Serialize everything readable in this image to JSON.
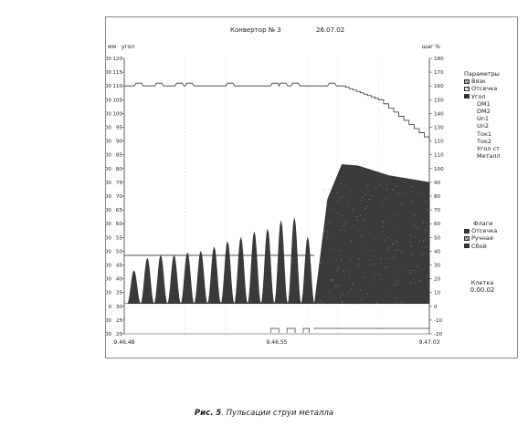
{
  "window": {
    "title": "Конвертор № 3",
    "date": "26.07.02"
  },
  "axes": {
    "left_unit_1": "мм",
    "left_unit_2": "угол",
    "right_unit": "шаг %"
  },
  "parameters": {
    "heading": "Параметры",
    "items": [
      {
        "label": "Вязк",
        "swatch": "hatch"
      },
      {
        "label": "Отсечка",
        "swatch": "light"
      },
      {
        "label": "Угол",
        "swatch": "solid"
      },
      {
        "label": "DM1",
        "swatch": ""
      },
      {
        "label": "DM2",
        "swatch": ""
      },
      {
        "label": "Un1",
        "swatch": ""
      },
      {
        "label": "Un2",
        "swatch": ""
      },
      {
        "label": "Ток1",
        "swatch": ""
      },
      {
        "label": "Ток2",
        "swatch": ""
      },
      {
        "label": "Угол ст",
        "swatch": ""
      },
      {
        "label": "Металл",
        "swatch": ""
      }
    ]
  },
  "flags": {
    "heading": "Флаги",
    "items": [
      {
        "label": "Отсечка",
        "swatch": "solid"
      },
      {
        "label": "Ручная",
        "swatch": "hatch"
      },
      {
        "label": "Сбой",
        "swatch": "solid"
      }
    ]
  },
  "cell": {
    "heading": "Клетка",
    "value": "0.00.02"
  },
  "caption": {
    "number": "Рис. 5",
    "text": ". Пульсации струи металла"
  },
  "colors": {
    "fill": "#3a3a3a",
    "line": "#333333",
    "grid": "#b8b8b8"
  },
  "chart_data": {
    "type": "area",
    "title": "",
    "x_ticks": [
      "9.46.48",
      "9.46.55",
      "9.47.03"
    ],
    "y_mm_ticks": [
      "-200",
      "-100",
      "0",
      "100",
      "200",
      "300",
      "400",
      "500",
      "600",
      "700",
      "800",
      "900",
      "1000",
      "1100",
      "1200",
      "1300",
      "1400",
      "1500",
      "1600",
      "1700",
      "1800"
    ],
    "y_angle_ticks": [
      "20",
      "25",
      "30",
      "35",
      "40",
      "45",
      "50",
      "55",
      "60",
      "65",
      "70",
      "75",
      "80",
      "85",
      "90",
      "95",
      "100",
      "105",
      "110",
      "115",
      "120"
    ],
    "y_right_ticks": [
      "-20",
      "-10",
      "0",
      "10",
      "20",
      "30",
      "40",
      "50",
      "60",
      "70",
      "80",
      "90",
      "100",
      "110",
      "120",
      "130",
      "140",
      "150",
      "160",
      "170",
      "180"
    ],
    "y_mm_range": [
      -200,
      1800
    ],
    "y_angle_range": [
      20,
      120
    ],
    "y_right_range": [
      -20,
      180
    ],
    "x_range_seconds": [
      0,
      15
    ],
    "pulse_peaks_mm": [
      260,
      350,
      370,
      370,
      390,
      400,
      430,
      470,
      500,
      540,
      560,
      620,
      640,
      500
    ],
    "envelope_mm": {
      "x_seconds": [
        9.35,
        10.0,
        10.7,
        11.5,
        13.0,
        15.0
      ],
      "y": [
        20,
        780,
        1030,
        1020,
        950,
        900
      ]
    },
    "line_step_percent": {
      "x_seconds": [
        0,
        10.7,
        12.5,
        15.0
      ],
      "y": [
        160,
        160,
        150,
        120
      ]
    },
    "threshold_mm": 370,
    "grid": true
  }
}
